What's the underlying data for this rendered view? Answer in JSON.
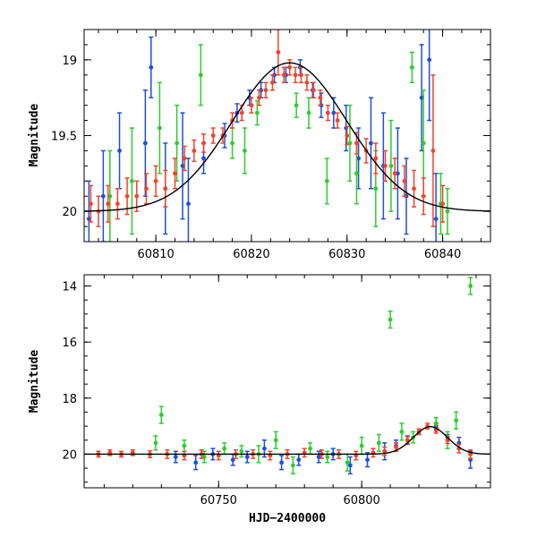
{
  "chart_data": [
    {
      "type": "scatter",
      "panel": "top",
      "ylabel": "Magnitude",
      "xlabel": "",
      "xlim": [
        60802.5,
        60845
      ],
      "ylim": [
        20.2,
        18.8
      ],
      "y_inverted": true,
      "xticks": [
        60810,
        60820,
        60830,
        60840
      ],
      "yticks": [
        19,
        19.5,
        20
      ],
      "ytick_labels": [
        "19",
        "19.5",
        "20"
      ],
      "series": [
        {
          "color": "#1f4fd8",
          "x": [
            60803.0,
            60804.5,
            60806.2,
            60808.9,
            60809.5,
            60811.0,
            60812.8,
            60813.4,
            60815.0,
            60817.2,
            60818.5,
            60819.8,
            60821.0,
            60822.4,
            60823.6,
            60825.1,
            60826.4,
            60827.3,
            60828.6,
            60829.9,
            60831.2,
            60832.5,
            60833.8,
            60835.3,
            60836.2,
            60837.8,
            60838.6,
            60839.3
          ],
          "y": [
            20.05,
            19.9,
            19.6,
            19.55,
            19.05,
            19.85,
            19.7,
            19.95,
            19.65,
            19.5,
            19.35,
            19.25,
            19.2,
            19.1,
            19.1,
            19.05,
            19.2,
            19.3,
            19.35,
            19.45,
            19.65,
            19.55,
            19.7,
            19.75,
            19.9,
            19.25,
            19.0,
            20.05
          ],
          "yerr": [
            0.25,
            0.3,
            0.25,
            0.35,
            0.2,
            0.3,
            0.35,
            0.3,
            0.1,
            0.08,
            0.06,
            0.05,
            0.05,
            0.05,
            0.05,
            0.05,
            0.05,
            0.08,
            0.1,
            0.15,
            0.2,
            0.3,
            0.35,
            0.3,
            0.25,
            0.35,
            0.4,
            0.3
          ]
        },
        {
          "color": "#2ecc2e",
          "x": [
            60805.2,
            60807.5,
            60810.4,
            60812.2,
            60814.7,
            60818.0,
            60819.3,
            60820.6,
            60824.7,
            60826.0,
            60827.9,
            60830.3,
            60831.0,
            60833.0,
            60834.6,
            60836.8,
            60838.0,
            60839.8,
            60840.5
          ],
          "y": [
            19.9,
            19.8,
            19.45,
            19.55,
            19.1,
            19.55,
            19.6,
            19.35,
            19.3,
            19.35,
            19.8,
            19.55,
            19.75,
            19.85,
            19.7,
            19.05,
            19.55,
            19.95,
            20.0
          ],
          "yerr": [
            0.3,
            0.35,
            0.3,
            0.25,
            0.2,
            0.1,
            0.15,
            0.08,
            0.08,
            0.1,
            0.15,
            0.25,
            0.2,
            0.25,
            0.3,
            0.1,
            0.35,
            0.2,
            0.15
          ]
        },
        {
          "color": "#f0442c",
          "x": [
            60803.2,
            60804.0,
            60805.0,
            60806.0,
            60807.0,
            60808.0,
            60809.0,
            60810.0,
            60811.0,
            60812.0,
            60813.0,
            60814.0,
            60815.0,
            60816.0,
            60817.0,
            60818.0,
            60819.0,
            60820.0,
            60820.8,
            60821.5,
            60822.2,
            60822.8,
            60823.4,
            60824.0,
            60824.6,
            60825.2,
            60825.8,
            60826.5,
            60827.2,
            60828.0,
            60829.0,
            60830.0,
            60831.0,
            60832.0,
            60833.0,
            60834.0,
            60835.0,
            60836.0,
            60837.0,
            60838.0,
            60839.0,
            60840.0
          ],
          "y": [
            19.95,
            20.0,
            19.95,
            19.95,
            19.9,
            19.9,
            19.85,
            19.8,
            19.85,
            19.75,
            19.65,
            19.6,
            19.55,
            19.5,
            19.5,
            19.4,
            19.35,
            19.3,
            19.25,
            19.2,
            19.15,
            18.95,
            19.1,
            19.05,
            19.1,
            19.1,
            19.15,
            19.2,
            19.25,
            19.35,
            19.4,
            19.5,
            19.55,
            19.6,
            19.65,
            19.7,
            19.75,
            19.8,
            19.85,
            19.9,
            19.6,
            19.95
          ],
          "yerr": [
            0.12,
            0.1,
            0.12,
            0.1,
            0.12,
            0.1,
            0.1,
            0.1,
            0.12,
            0.1,
            0.08,
            0.07,
            0.06,
            0.05,
            0.05,
            0.05,
            0.05,
            0.05,
            0.05,
            0.05,
            0.05,
            0.15,
            0.05,
            0.05,
            0.05,
            0.05,
            0.05,
            0.05,
            0.05,
            0.05,
            0.05,
            0.06,
            0.07,
            0.08,
            0.1,
            0.1,
            0.1,
            0.1,
            0.12,
            0.12,
            0.5,
            0.12
          ]
        }
      ],
      "model_curve": {
        "color": "#000000",
        "peak_x": 60824,
        "peak_mag": 19.02,
        "baseline_mag": 20.0,
        "width": 6
      }
    },
    {
      "type": "scatter",
      "panel": "bottom",
      "ylabel": "Magnitude",
      "xlabel": "HJD−2400000",
      "xlim": [
        60703,
        60845
      ],
      "ylim": [
        21.2,
        13.6
      ],
      "y_inverted": true,
      "xticks": [
        60750,
        60800
      ],
      "yticks": [
        14,
        16,
        18,
        20
      ],
      "ytick_labels": [
        "14",
        "16",
        "18",
        "20"
      ],
      "series": [
        {
          "color": "#1f4fd8",
          "x": [
            60735,
            60742,
            60748,
            60755,
            60760,
            60766,
            60772,
            60778,
            60785,
            60790,
            60796,
            60802,
            60808,
            60812,
            60816,
            60820,
            60826,
            60830,
            60834,
            60838
          ],
          "y": [
            20.1,
            20.3,
            20.0,
            20.2,
            20.1,
            19.8,
            20.3,
            20.2,
            20.1,
            20.0,
            20.4,
            20.2,
            19.9,
            19.7,
            19.5,
            19.2,
            19.0,
            19.4,
            19.6,
            20.2
          ],
          "yerr": [
            0.2,
            0.25,
            0.2,
            0.2,
            0.2,
            0.3,
            0.25,
            0.2,
            0.2,
            0.2,
            0.3,
            0.25,
            0.3,
            0.2,
            0.15,
            0.1,
            0.1,
            0.1,
            0.2,
            0.3
          ]
        },
        {
          "color": "#2ecc2e",
          "x": [
            60728,
            60730,
            60738,
            60745,
            60752,
            60758,
            60764,
            60770,
            60776,
            60782,
            60788,
            60795,
            60800,
            60806,
            60810,
            60814,
            60818,
            60826,
            60830,
            60833,
            60838
          ],
          "y": [
            19.6,
            18.6,
            19.7,
            20.1,
            19.8,
            19.9,
            20.0,
            19.5,
            20.4,
            19.8,
            20.1,
            20.3,
            19.7,
            19.6,
            15.2,
            19.2,
            19.4,
            18.9,
            19.5,
            18.8,
            14.0
          ],
          "yerr": [
            0.25,
            0.3,
            0.2,
            0.2,
            0.2,
            0.2,
            0.3,
            0.3,
            0.3,
            0.2,
            0.2,
            0.3,
            0.3,
            0.3,
            0.3,
            0.3,
            0.2,
            0.2,
            0.3,
            0.3,
            0.3
          ]
        },
        {
          "color": "#f0442c",
          "x": [
            60708,
            60712,
            60716,
            60720,
            60726,
            60732,
            60738,
            60744,
            60750,
            60756,
            60762,
            60768,
            60774,
            60780,
            60786,
            60792,
            60798,
            60804,
            60808,
            60812,
            60816,
            60820,
            60823,
            60826,
            60830,
            60834,
            60838
          ],
          "y": [
            20.0,
            19.95,
            20.0,
            19.95,
            20.0,
            20.0,
            20.05,
            20.0,
            20.05,
            20.0,
            20.0,
            20.05,
            20.0,
            19.95,
            20.0,
            20.0,
            20.05,
            19.95,
            19.9,
            19.75,
            19.5,
            19.2,
            19.0,
            19.15,
            19.5,
            19.8,
            20.0
          ],
          "yerr": [
            0.1,
            0.1,
            0.1,
            0.1,
            0.12,
            0.15,
            0.15,
            0.15,
            0.15,
            0.15,
            0.15,
            0.15,
            0.15,
            0.15,
            0.15,
            0.15,
            0.15,
            0.15,
            0.15,
            0.15,
            0.12,
            0.1,
            0.1,
            0.1,
            0.12,
            0.15,
            0.15
          ]
        }
      ],
      "model_curve": {
        "color": "#000000",
        "peak_x": 60824,
        "peak_mag": 19.02,
        "baseline_mag": 20.0,
        "width": 6
      }
    }
  ]
}
